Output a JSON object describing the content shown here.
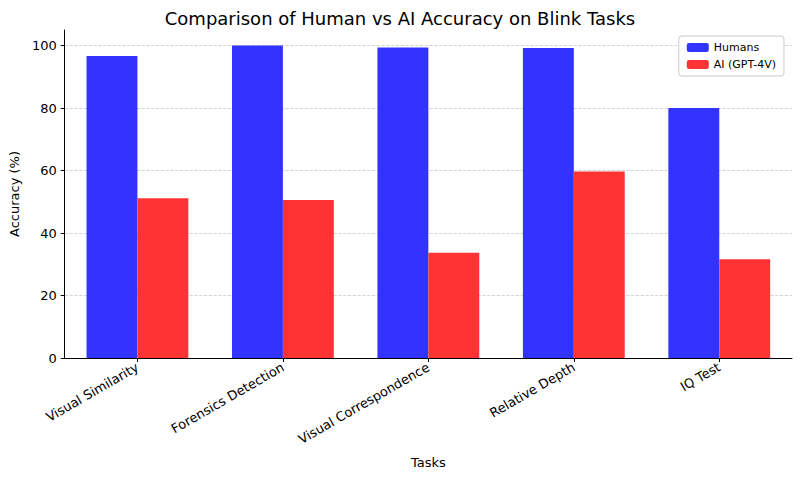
{
  "chart_data": {
    "type": "bar",
    "title": "Comparison of Human vs AI Accuracy on Blink Tasks",
    "xlabel": "Tasks",
    "ylabel": "Accuracy (%)",
    "categories": [
      "Visual Similarity",
      "Forensics Detection",
      "Visual Correspondence",
      "Relative Depth",
      "IQ Test"
    ],
    "series": [
      {
        "name": "Humans",
        "color": "#3333ff",
        "values": [
          96.7,
          100,
          99.4,
          99.2,
          80.0
        ]
      },
      {
        "name": "AI (GPT-4V)",
        "color": "#ff3333",
        "values": [
          51.1,
          50.6,
          33.7,
          59.7,
          31.6
        ]
      }
    ],
    "ylim": [
      0,
      105
    ],
    "yticks": [
      0,
      20,
      40,
      60,
      80,
      100
    ],
    "grid": true,
    "legend": "upper right"
  }
}
